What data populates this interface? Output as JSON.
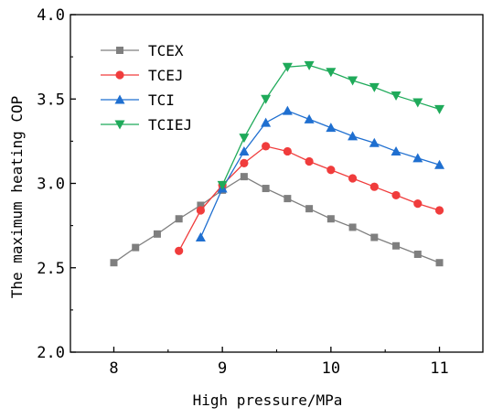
{
  "chart_data": {
    "type": "line",
    "title": "",
    "xlabel": "High pressure/MPa",
    "ylabel": "The maximum heating COP",
    "xlim": [
      7.6,
      11.4
    ],
    "ylim": [
      2.0,
      4.0
    ],
    "xticks": [
      8,
      9,
      10,
      11
    ],
    "xtick_labels": [
      "8",
      "9",
      "10",
      "11"
    ],
    "yticks": [
      2.0,
      2.5,
      3.0,
      3.5,
      4.0
    ],
    "ytick_labels": [
      "2.0",
      "2.5",
      "3.0",
      "3.5",
      "4.0"
    ],
    "grid": false,
    "legend_position": "top-left",
    "series": [
      {
        "name": "TCEX",
        "color": "#7f7f7f",
        "marker": "square",
        "x": [
          8.0,
          8.2,
          8.4,
          8.6,
          8.8,
          9.0,
          9.2,
          9.4,
          9.6,
          9.8,
          10.0,
          10.2,
          10.4,
          10.6,
          10.8,
          11.0
        ],
        "y": [
          2.53,
          2.62,
          2.7,
          2.79,
          2.87,
          2.96,
          3.04,
          2.97,
          2.91,
          2.85,
          2.79,
          2.74,
          2.68,
          2.63,
          2.58,
          2.53
        ]
      },
      {
        "name": "TCEJ",
        "color": "#f03c3c",
        "marker": "circle",
        "x": [
          8.6,
          8.8,
          9.0,
          9.2,
          9.4,
          9.6,
          9.8,
          10.0,
          10.2,
          10.4,
          10.6,
          10.8,
          11.0
        ],
        "y": [
          2.6,
          2.84,
          2.99,
          3.12,
          3.22,
          3.19,
          3.13,
          3.08,
          3.03,
          2.98,
          2.93,
          2.88,
          2.84
        ]
      },
      {
        "name": "TCI",
        "color": "#1f6fd0",
        "marker": "triangle-up",
        "x": [
          8.8,
          9.0,
          9.2,
          9.4,
          9.6,
          9.8,
          10.0,
          10.2,
          10.4,
          10.6,
          10.8,
          11.0
        ],
        "y": [
          2.68,
          2.97,
          3.19,
          3.36,
          3.43,
          3.38,
          3.33,
          3.28,
          3.24,
          3.19,
          3.15,
          3.11
        ]
      },
      {
        "name": "TCIEJ",
        "color": "#1faa5a",
        "marker": "triangle-down",
        "x": [
          9.0,
          9.2,
          9.4,
          9.6,
          9.8,
          10.0,
          10.2,
          10.4,
          10.6,
          10.8,
          11.0
        ],
        "y": [
          2.99,
          3.27,
          3.5,
          3.69,
          3.7,
          3.66,
          3.61,
          3.57,
          3.52,
          3.48,
          3.44
        ]
      }
    ]
  }
}
